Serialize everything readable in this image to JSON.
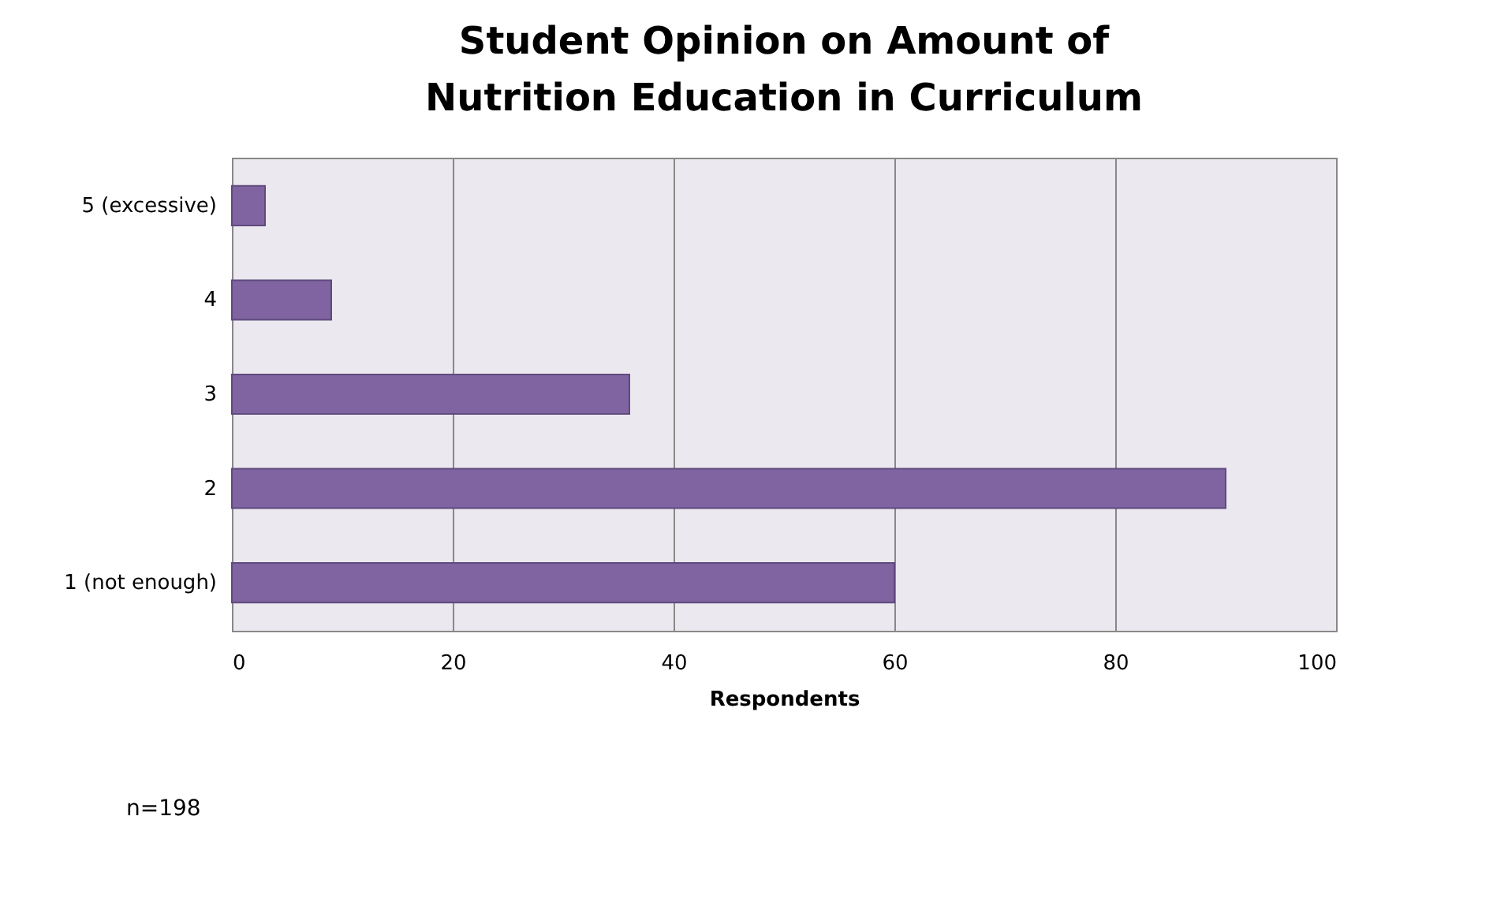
{
  "chart_data": {
    "type": "bar",
    "orientation": "horizontal",
    "title": "Student Opinion on Amount of Nutrition Education in Curriculum",
    "categories": [
      "5 (excessive)",
      "4",
      "3",
      "2",
      "1 (not enough)"
    ],
    "values": [
      3,
      9,
      36,
      90,
      60
    ],
    "color": "#8064a2",
    "xlim": [
      0,
      100
    ],
    "xticks": [
      0,
      20,
      40,
      60,
      80,
      100
    ],
    "grid": "x",
    "xlabel": "Respondents",
    "annotations": [
      "n=198"
    ]
  }
}
